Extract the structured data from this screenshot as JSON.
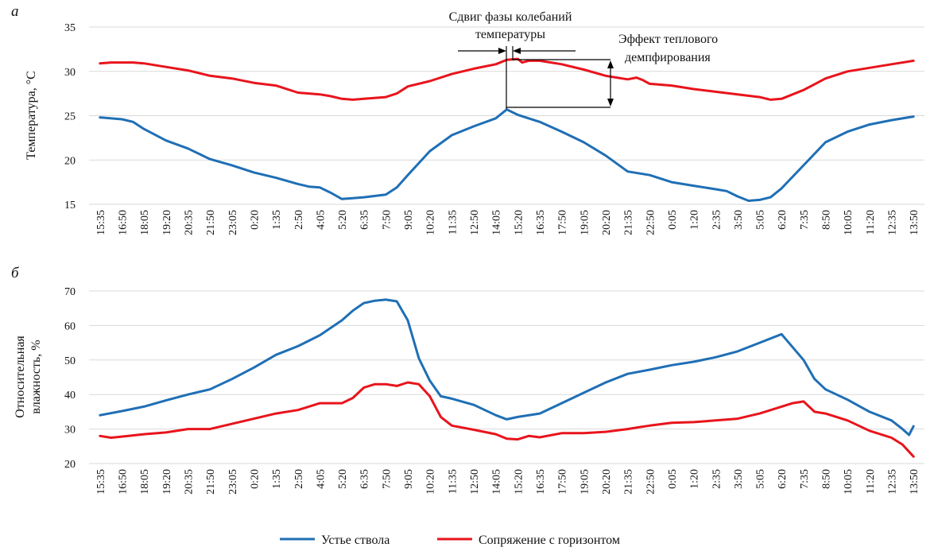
{
  "chart_data": [
    {
      "panel_label": "а",
      "type": "line",
      "title": "",
      "ylabel": "Температура, °C",
      "xlabel": "",
      "ylim": [
        15,
        35
      ],
      "yticks": [
        15,
        20,
        25,
        30,
        35
      ],
      "grid": true,
      "x_tick_labels": [
        "15:35",
        "16:50",
        "18:05",
        "19:20",
        "20:35",
        "21:50",
        "23:05",
        "0:20",
        "1:35",
        "2:50",
        "4:05",
        "5:20",
        "6:35",
        "7:50",
        "9:05",
        "10:20",
        "11:35",
        "12:50",
        "14:05",
        "15:20",
        "16:35",
        "17:50",
        "19:05",
        "20:20",
        "21:35",
        "22:50",
        "0:05",
        "1:20",
        "2:35",
        "3:50",
        "5:05",
        "6:20",
        "7:35",
        "8:50",
        "10:05",
        "11:20",
        "12:35",
        "13:50"
      ],
      "x_range": [
        0,
        37
      ],
      "series": [
        {
          "name": "Устье ствола",
          "color": "#1f6fb5",
          "x": [
            0,
            1,
            1.5,
            2,
            3,
            4,
            5,
            6,
            7,
            8,
            9,
            9.5,
            10,
            10.5,
            11,
            11.5,
            12,
            13,
            13.5,
            14,
            15,
            16,
            17,
            18,
            18.5,
            19,
            20,
            21,
            22,
            23,
            24,
            25,
            26,
            27,
            28,
            28.5,
            29,
            29.5,
            30,
            30.5,
            31,
            32,
            33,
            34,
            35,
            36,
            37
          ],
          "values": [
            24.8,
            24.6,
            24.3,
            23.5,
            22.2,
            21.3,
            20.1,
            19.4,
            18.6,
            18.0,
            17.3,
            17.0,
            16.9,
            16.3,
            15.6,
            15.7,
            15.8,
            16.1,
            16.9,
            18.3,
            21.0,
            22.8,
            23.8,
            24.7,
            25.7,
            25.1,
            24.3,
            23.2,
            22.0,
            20.5,
            18.7,
            18.3,
            17.5,
            17.1,
            16.7,
            16.5,
            15.9,
            15.4,
            15.5,
            15.8,
            16.8,
            19.4,
            22.0,
            23.2,
            24.0,
            24.5,
            24.9
          ]
        },
        {
          "name": "Сопряжение с горизонтом",
          "color": "#e8141c",
          "x": [
            0,
            0.5,
            1,
            1.5,
            2,
            3,
            4,
            5,
            6,
            7,
            8,
            9,
            10,
            10.5,
            11,
            11.5,
            12,
            13,
            13.5,
            14,
            15,
            16,
            17,
            18,
            18.5,
            19,
            19.2,
            19.5,
            20,
            21,
            22,
            23,
            24,
            24.4,
            24.7,
            25,
            26,
            27,
            28,
            29,
            30,
            30.5,
            31,
            32,
            33,
            34,
            35,
            36,
            37
          ],
          "values": [
            30.9,
            31.0,
            31.0,
            31.0,
            30.9,
            30.5,
            30.1,
            29.5,
            29.2,
            28.7,
            28.4,
            27.6,
            27.4,
            27.2,
            26.9,
            26.8,
            26.9,
            27.1,
            27.5,
            28.3,
            28.9,
            29.7,
            30.3,
            30.8,
            31.3,
            31.4,
            31.0,
            31.2,
            31.2,
            30.8,
            30.2,
            29.5,
            29.1,
            29.3,
            29.0,
            28.6,
            28.4,
            28.0,
            27.7,
            27.4,
            27.1,
            26.8,
            26.9,
            27.9,
            29.2,
            30.0,
            30.4,
            30.8,
            31.2
          ]
        }
      ],
      "annotations": [
        {
          "label": "phase_shift",
          "lines": [
            "Сдвиг фазы колебаний",
            "температуры"
          ]
        },
        {
          "label": "damping",
          "lines": [
            "Эффект  теплового",
            "демпфирования"
          ]
        }
      ]
    },
    {
      "panel_label": "б",
      "type": "line",
      "title": "",
      "ylabel_lines": [
        "Относительная",
        "влажность, %"
      ],
      "xlabel": "",
      "ylim": [
        20,
        70
      ],
      "yticks": [
        20,
        30,
        40,
        50,
        60,
        70
      ],
      "grid": true,
      "x_tick_labels": [
        "15:35",
        "16:50",
        "18:05",
        "19:20",
        "20:35",
        "21:50",
        "23:05",
        "0:20",
        "1:35",
        "2:50",
        "4:05",
        "5:20",
        "6:35",
        "7:50",
        "9:05",
        "10:20",
        "11:35",
        "12:50",
        "14:05",
        "15:20",
        "16:35",
        "17:50",
        "19:05",
        "20:20",
        "21:35",
        "22:50",
        "0:05",
        "1:20",
        "2:35",
        "3:50",
        "5:05",
        "6:20",
        "7:35",
        "8:50",
        "10:05",
        "11:20",
        "12:35",
        "13:50"
      ],
      "x_range": [
        0,
        37
      ],
      "series": [
        {
          "name": "Устье ствола",
          "color": "#1f6fb5",
          "x": [
            0,
            1,
            2,
            3,
            4,
            5,
            6,
            7,
            8,
            9,
            10,
            11,
            11.5,
            12,
            12.5,
            13,
            13.5,
            14,
            14.5,
            15,
            15.5,
            16,
            17,
            18,
            18.5,
            19,
            20,
            21,
            22,
            23,
            24,
            25,
            26,
            27,
            28,
            29,
            30,
            31,
            32,
            32.5,
            33,
            34,
            35,
            36,
            36.5,
            36.8,
            37
          ],
          "values": [
            34.0,
            35.2,
            36.5,
            38.3,
            40.0,
            41.5,
            44.5,
            47.8,
            51.5,
            54.0,
            57.2,
            61.5,
            64.3,
            66.5,
            67.2,
            67.5,
            67.0,
            61.5,
            50.5,
            44.0,
            39.5,
            38.8,
            37.0,
            34.0,
            32.8,
            33.5,
            34.5,
            37.5,
            40.5,
            43.5,
            46.0,
            47.2,
            48.5,
            49.5,
            50.8,
            52.5,
            55.0,
            57.5,
            50.0,
            44.5,
            41.5,
            38.5,
            35.0,
            32.5,
            30.0,
            28.3,
            30.8
          ]
        },
        {
          "name": "Сопряжение с горизонтом",
          "color": "#e8141c",
          "x": [
            0,
            0.5,
            1,
            2,
            3,
            4,
            5,
            6,
            7,
            8,
            9,
            10,
            11,
            11.5,
            12,
            12.5,
            13,
            13.5,
            14,
            14.5,
            15,
            15.5,
            16,
            17,
            18,
            18.5,
            19,
            19.5,
            20,
            21,
            22,
            23,
            24,
            24.5,
            25,
            26,
            27,
            28,
            29,
            30,
            31,
            31.5,
            32,
            32.5,
            33,
            34,
            35,
            36,
            36.5,
            37
          ],
          "values": [
            28.0,
            27.5,
            27.8,
            28.5,
            29.0,
            30.0,
            30.0,
            31.5,
            33.0,
            34.5,
            35.5,
            37.5,
            37.5,
            39.0,
            42.0,
            43.0,
            43.0,
            42.5,
            43.5,
            43.0,
            39.5,
            33.5,
            31.0,
            29.8,
            28.5,
            27.2,
            27.0,
            28.0,
            27.6,
            28.8,
            28.8,
            29.2,
            30.0,
            30.5,
            31.0,
            31.8,
            32.0,
            32.5,
            33.0,
            34.5,
            36.5,
            37.5,
            38.0,
            35.0,
            34.5,
            32.5,
            29.5,
            27.5,
            25.5,
            22.0
          ]
        }
      ]
    }
  ],
  "legend": {
    "entries": [
      {
        "label": "Устье ствола",
        "color": "#1f6fb5"
      },
      {
        "label": "Сопряжение с горизонтом",
        "color": "#e8141c"
      }
    ]
  }
}
